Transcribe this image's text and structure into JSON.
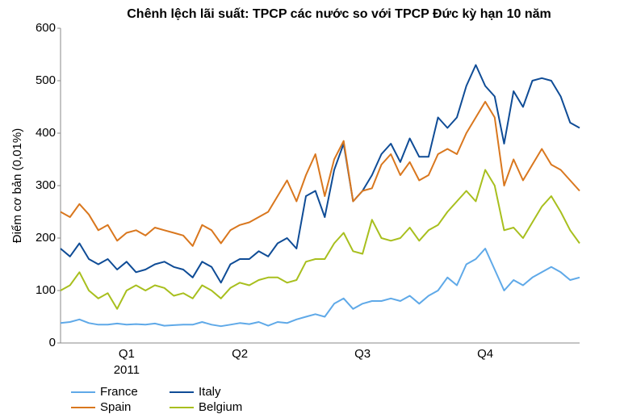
{
  "chart_data": {
    "type": "line",
    "title": "Chênh lệch lãi suất: TPCP các nước so với TPCP Đức kỳ hạn 10 năm",
    "y_label": "Điểm cơ bản (0,01%)",
    "x_group_label": "2011",
    "categories": [
      null,
      null,
      null,
      null,
      null,
      null,
      null,
      "Q1",
      null,
      null,
      null,
      null,
      null,
      null,
      null,
      null,
      null,
      null,
      null,
      "Q2",
      null,
      null,
      null,
      null,
      null,
      null,
      null,
      null,
      null,
      null,
      null,
      null,
      "Q3",
      null,
      null,
      null,
      null,
      null,
      null,
      null,
      null,
      null,
      null,
      null,
      null,
      "Q4",
      null,
      null,
      null,
      null,
      null,
      null,
      null,
      null,
      null,
      null
    ],
    "series": [
      {
        "name": "France",
        "color": "#5fa9e8",
        "values": [
          38,
          40,
          45,
          38,
          35,
          35,
          37,
          35,
          36,
          35,
          37,
          33,
          34,
          35,
          35,
          40,
          35,
          32,
          35,
          38,
          36,
          40,
          33,
          40,
          38,
          45,
          50,
          55,
          50,
          75,
          85,
          65,
          75,
          80,
          80,
          85,
          80,
          90,
          75,
          90,
          100,
          125,
          110,
          150,
          160,
          180,
          140,
          100,
          120,
          110,
          125,
          135,
          145,
          135,
          120,
          125
        ]
      },
      {
        "name": "Italy",
        "color": "#0f4c96",
        "values": [
          180,
          165,
          190,
          160,
          150,
          160,
          140,
          155,
          135,
          140,
          150,
          155,
          145,
          140,
          125,
          155,
          145,
          115,
          150,
          160,
          160,
          175,
          165,
          190,
          200,
          180,
          280,
          290,
          240,
          330,
          380,
          270,
          290,
          320,
          360,
          380,
          345,
          390,
          355,
          355,
          430,
          410,
          430,
          490,
          530,
          490,
          470,
          380,
          480,
          450,
          500,
          505,
          500,
          470,
          420,
          410
        ]
      },
      {
        "name": "Spain",
        "color": "#d9771e",
        "values": [
          250,
          240,
          265,
          245,
          215,
          225,
          195,
          210,
          215,
          205,
          220,
          215,
          210,
          205,
          185,
          225,
          215,
          190,
          215,
          225,
          230,
          240,
          250,
          280,
          310,
          270,
          320,
          360,
          280,
          350,
          385,
          270,
          290,
          295,
          340,
          360,
          320,
          345,
          310,
          320,
          360,
          370,
          360,
          400,
          430,
          460,
          430,
          300,
          350,
          310,
          340,
          370,
          340,
          330,
          310,
          290
        ]
      },
      {
        "name": "Belgium",
        "color": "#a8bf1e",
        "values": [
          100,
          110,
          135,
          100,
          85,
          95,
          65,
          100,
          110,
          100,
          110,
          105,
          90,
          95,
          85,
          110,
          100,
          85,
          105,
          115,
          110,
          120,
          125,
          125,
          115,
          120,
          155,
          160,
          160,
          190,
          210,
          175,
          170,
          235,
          200,
          195,
          200,
          220,
          195,
          215,
          225,
          250,
          270,
          290,
          270,
          330,
          300,
          215,
          220,
          200,
          230,
          260,
          280,
          250,
          215,
          190
        ]
      }
    ],
    "ylim": [
      0,
      600
    ],
    "yticks": [
      0,
      100,
      200,
      300,
      400,
      500,
      600
    ]
  }
}
